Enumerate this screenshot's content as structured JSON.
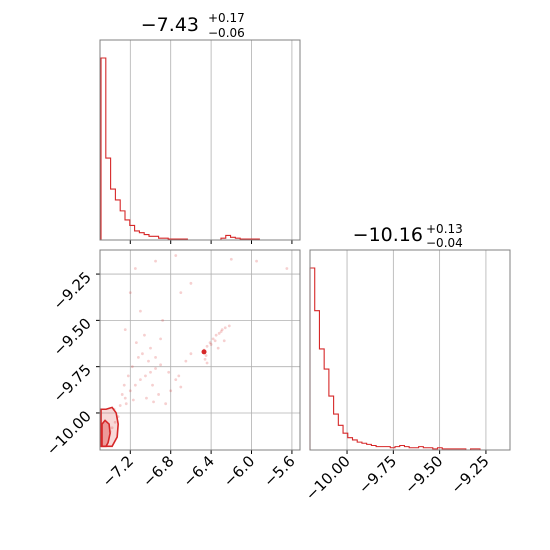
{
  "colors": {
    "series": "#d62728",
    "grid": "#b0b0b0",
    "frame": "#808080"
  },
  "chart_data": [
    {
      "panel": "marginal-x",
      "type": "histogram",
      "title_value": "−7.43",
      "title_plus": "+0.17",
      "title_minus": "−0.06",
      "xlim": [
        -7.5,
        -5.52
      ],
      "x_ticks": [
        -7.2,
        -6.8,
        -6.4,
        -6.0,
        -5.6
      ],
      "grid": true,
      "bin_start": -7.49,
      "bin_width": 0.0475,
      "counts": [
        1.0,
        0.45,
        0.28,
        0.22,
        0.16,
        0.11,
        0.08,
        0.05,
        0.04,
        0.03,
        0.02,
        0.02,
        0.01,
        0.01,
        0.005,
        0.005,
        0.005,
        0.005,
        0.0,
        0.0,
        0.0,
        0.0,
        0.0,
        0.0,
        0.0,
        0.01,
        0.025,
        0.015,
        0.01,
        0.005,
        0.005,
        0.005,
        0.005,
        0.0,
        0.0,
        0.0,
        0.0,
        0.0,
        0.0,
        0.0,
        0.0
      ]
    },
    {
      "panel": "marginal-y",
      "type": "histogram",
      "title_value": "−10.16",
      "title_plus": "+0.13",
      "title_minus": "−0.04",
      "xlim": [
        -10.2,
        -9.12
      ],
      "x_ticks": [
        -10.0,
        -9.75,
        -9.5,
        -9.25
      ],
      "x_tick_labels": [
        "−10.00",
        "−9.75",
        "−9.50",
        "−9.25"
      ],
      "grid": true,
      "bin_start": -10.2,
      "bin_width": 0.0255,
      "counts": [
        0.81,
        0.62,
        0.45,
        0.36,
        0.24,
        0.16,
        0.11,
        0.075,
        0.055,
        0.045,
        0.035,
        0.03,
        0.025,
        0.02,
        0.015,
        0.015,
        0.015,
        0.01,
        0.015,
        0.02,
        0.015,
        0.01,
        0.01,
        0.015,
        0.01,
        0.01,
        0.005,
        0.01,
        0.005,
        0.005,
        0.005,
        0.005,
        0.005,
        0.0,
        0.005,
        0.005,
        0.0,
        0.0,
        0.0,
        0.0,
        0.0,
        0.0
      ]
    },
    {
      "panel": "joint",
      "type": "scatter",
      "xlim": [
        -7.5,
        -5.52
      ],
      "ylim": [
        -10.2,
        -9.12
      ],
      "x_ticks": [
        -7.2,
        -6.8,
        -6.4,
        -6.0,
        -5.6
      ],
      "x_tick_labels": [
        "−7.2",
        "−6.8",
        "−6.4",
        "−6.0",
        "−5.6"
      ],
      "y_ticks": [
        -10.0,
        -9.75,
        -9.5,
        -9.25
      ],
      "y_tick_labels": [
        "−10.00",
        "−9.75",
        "−9.50",
        "−9.25"
      ],
      "grid": true,
      "points": [
        [
          -6.48,
          -9.67
        ],
        [
          -6.47,
          -9.66
        ],
        [
          -6.44,
          -9.64
        ],
        [
          -6.41,
          -9.62
        ],
        [
          -6.38,
          -9.6
        ],
        [
          -6.35,
          -9.58
        ],
        [
          -6.32,
          -9.57
        ],
        [
          -6.29,
          -9.55
        ],
        [
          -6.26,
          -9.54
        ],
        [
          -6.22,
          -9.53
        ],
        [
          -6.45,
          -9.69
        ],
        [
          -6.46,
          -9.71
        ],
        [
          -6.44,
          -9.73
        ],
        [
          -6.4,
          -9.63
        ],
        [
          -6.36,
          -9.61
        ],
        [
          -6.3,
          -9.56
        ],
        [
          -6.27,
          -9.61
        ],
        [
          -6.33,
          -9.65
        ],
        [
          -7.3,
          -9.96
        ],
        [
          -7.25,
          -9.92
        ],
        [
          -7.2,
          -9.88
        ],
        [
          -7.15,
          -9.85
        ],
        [
          -7.1,
          -9.82
        ],
        [
          -7.05,
          -9.8
        ],
        [
          -7.0,
          -9.78
        ],
        [
          -6.95,
          -9.76
        ],
        [
          -6.9,
          -9.74
        ],
        [
          -7.22,
          -9.8
        ],
        [
          -7.18,
          -9.75
        ],
        [
          -7.12,
          -9.7
        ],
        [
          -7.08,
          -9.68
        ],
        [
          -7.02,
          -9.72
        ],
        [
          -6.98,
          -9.85
        ],
        [
          -6.92,
          -9.9
        ],
        [
          -6.85,
          -9.95
        ],
        [
          -6.8,
          -9.88
        ],
        [
          -6.75,
          -9.82
        ],
        [
          -6.7,
          -9.86
        ],
        [
          -7.28,
          -9.9
        ],
        [
          -7.26,
          -9.85
        ],
        [
          -7.24,
          -9.95
        ],
        [
          -7.32,
          -10.02
        ],
        [
          -7.35,
          -10.05
        ],
        [
          -7.38,
          -10.08
        ],
        [
          -7.4,
          -10.1
        ],
        [
          -7.36,
          -9.98
        ],
        [
          -7.14,
          -9.62
        ],
        [
          -7.06,
          -9.58
        ],
        [
          -7.0,
          -9.65
        ],
        [
          -6.95,
          -9.7
        ],
        [
          -7.2,
          -9.35
        ],
        [
          -7.15,
          -9.22
        ],
        [
          -6.95,
          -9.18
        ],
        [
          -6.75,
          -9.15
        ],
        [
          -6.2,
          -9.17
        ],
        [
          -5.95,
          -9.18
        ],
        [
          -5.65,
          -9.22
        ],
        [
          -6.6,
          -9.3
        ],
        [
          -6.7,
          -9.35
        ],
        [
          -7.1,
          -9.45
        ],
        [
          -6.88,
          -9.5
        ],
        [
          -7.25,
          -9.55
        ],
        [
          -6.65,
          -9.72
        ],
        [
          -6.6,
          -9.68
        ],
        [
          -6.9,
          -9.6
        ],
        [
          -7.04,
          -9.92
        ],
        [
          -6.97,
          -9.94
        ],
        [
          -6.82,
          -9.78
        ],
        [
          -6.72,
          -9.8
        ],
        [
          -7.17,
          -9.93
        ]
      ],
      "contours": {
        "outer": [
          [
            -7.49,
            -10.18
          ],
          [
            -7.49,
            -9.98
          ],
          [
            -7.44,
            -9.98
          ],
          [
            -7.38,
            -9.97
          ],
          [
            -7.34,
            -10.0
          ],
          [
            -7.32,
            -10.06
          ],
          [
            -7.33,
            -10.13
          ],
          [
            -7.38,
            -10.18
          ]
        ],
        "inner": [
          [
            -7.48,
            -10.18
          ],
          [
            -7.48,
            -10.06
          ],
          [
            -7.45,
            -10.04
          ],
          [
            -7.41,
            -10.06
          ],
          [
            -7.4,
            -10.11
          ],
          [
            -7.42,
            -10.16
          ],
          [
            -7.44,
            -10.18
          ]
        ]
      },
      "peak": [
        -6.47,
        -9.67
      ]
    }
  ]
}
